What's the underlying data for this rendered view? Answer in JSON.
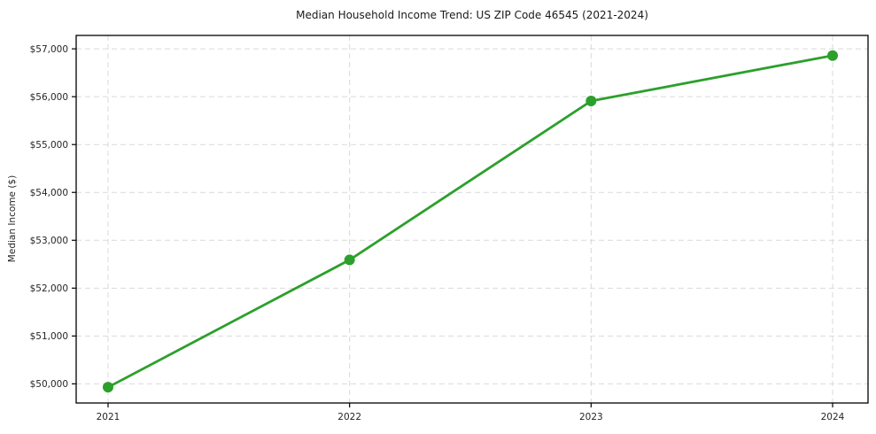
{
  "chart_data": {
    "type": "line",
    "title": "Median Household Income Trend: US ZIP Code 46545 (2021-2024)",
    "xlabel": "",
    "ylabel": "Median Income ($)",
    "categories": [
      "2021",
      "2022",
      "2023",
      "2024"
    ],
    "x": [
      2021,
      2022,
      2023,
      2024
    ],
    "series": [
      {
        "name": "Median Household Income",
        "values": [
          49930,
          52590,
          55910,
          56860
        ]
      }
    ],
    "ylim": [
      49600,
      57280
    ],
    "y_tick_values": [
      50000,
      51000,
      52000,
      53000,
      54000,
      55000,
      56000,
      57000
    ],
    "y_tick_labels": [
      "$50,000",
      "$51,000",
      "$52,000",
      "$53,000",
      "$54,000",
      "$55,000",
      "$56,000",
      "$57,000"
    ],
    "x_tick_labels": [
      "2021",
      "2022",
      "2023",
      "2024"
    ],
    "grid": true,
    "grid_style": "dashed",
    "legend_position": "none",
    "marker": "circle",
    "colors": {
      "line": "#2ca02c",
      "marker": "#2ca02c",
      "grid": "#d9d9d9",
      "spine": "#000000",
      "text": "#262626",
      "background": "#ffffff"
    }
  }
}
